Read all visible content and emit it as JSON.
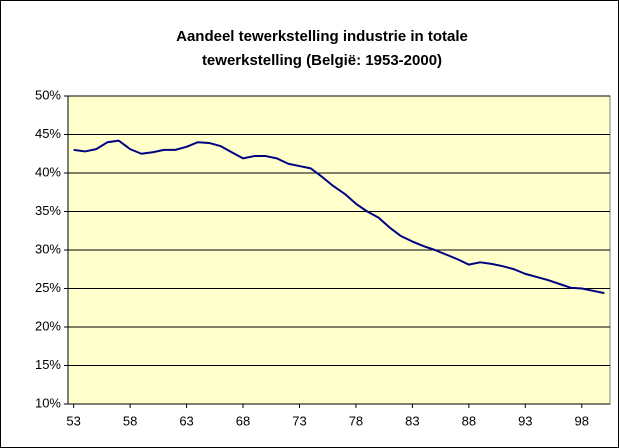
{
  "chart_data": {
    "type": "line",
    "title": [
      "Aandeel tewerkstelling industrie in totale",
      "tewerkstelling (België: 1953-2000)"
    ],
    "x": [
      1953,
      1954,
      1955,
      1956,
      1957,
      1958,
      1959,
      1960,
      1961,
      1962,
      1963,
      1964,
      1965,
      1966,
      1967,
      1968,
      1969,
      1970,
      1971,
      1972,
      1973,
      1974,
      1975,
      1976,
      1977,
      1978,
      1979,
      1980,
      1981,
      1982,
      1983,
      1984,
      1985,
      1986,
      1987,
      1988,
      1989,
      1990,
      1991,
      1992,
      1993,
      1994,
      1995,
      1996,
      1997,
      1998,
      1999,
      2000
    ],
    "series": [
      {
        "color": "#000080",
        "values": [
          43.0,
          42.8,
          43.1,
          44.0,
          44.2,
          43.1,
          42.5,
          42.7,
          43.0,
          43.0,
          43.4,
          44.0,
          43.9,
          43.5,
          42.7,
          41.9,
          42.2,
          42.2,
          41.9,
          41.2,
          40.9,
          40.6,
          39.5,
          38.3,
          37.3,
          36.0,
          35.0,
          34.2,
          32.9,
          31.8,
          31.1,
          30.5,
          30.0,
          29.4,
          28.8,
          28.1,
          28.4,
          28.2,
          27.9,
          27.5,
          26.9,
          26.5,
          26.1,
          25.6,
          25.1,
          25.0,
          24.7,
          24.4
        ]
      }
    ],
    "xlim": [
      1952.5,
      2000.5
    ],
    "xticks": [
      {
        "value": 1953,
        "label": "53"
      },
      {
        "value": 1958,
        "label": "58"
      },
      {
        "value": 1963,
        "label": "63"
      },
      {
        "value": 1968,
        "label": "68"
      },
      {
        "value": 1973,
        "label": "73"
      },
      {
        "value": 1978,
        "label": "78"
      },
      {
        "value": 1983,
        "label": "83"
      },
      {
        "value": 1988,
        "label": "88"
      },
      {
        "value": 1993,
        "label": "93"
      },
      {
        "value": 1998,
        "label": "98"
      }
    ],
    "ylim": [
      10,
      50
    ],
    "yticks": [
      {
        "value": 10,
        "label": "10%"
      },
      {
        "value": 15,
        "label": "15%"
      },
      {
        "value": 20,
        "label": "20%"
      },
      {
        "value": 25,
        "label": "25%"
      },
      {
        "value": 30,
        "label": "30%"
      },
      {
        "value": 35,
        "label": "35%"
      },
      {
        "value": 40,
        "label": "40%"
      },
      {
        "value": 45,
        "label": "45%"
      },
      {
        "value": 50,
        "label": "50%"
      }
    ],
    "grid": true,
    "background": "#ffffcc"
  }
}
